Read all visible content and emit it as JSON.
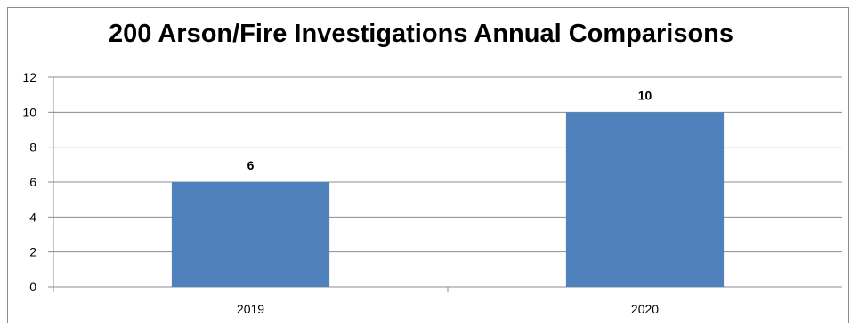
{
  "chart_data": {
    "type": "bar",
    "title": "200 Arson/Fire Investigations Annual Comparisons",
    "categories": [
      "2019",
      "2020"
    ],
    "values": [
      6,
      10
    ],
    "ylim": [
      0,
      12
    ],
    "yticks": [
      "0",
      "2",
      "4",
      "6",
      "8",
      "10",
      "12"
    ],
    "grid": true,
    "xlabel": "",
    "ylabel": "",
    "bar_color": "#4f81bd",
    "gridline_color": "#8c8c8c"
  }
}
